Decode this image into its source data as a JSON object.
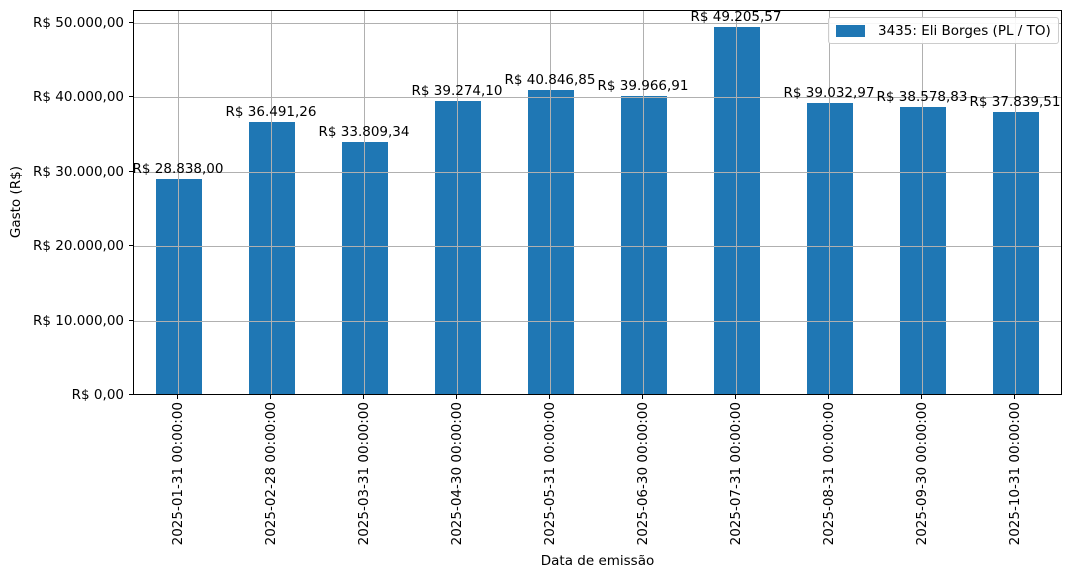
{
  "chart_data": {
    "type": "bar",
    "title": "",
    "xlabel": "Data de emissão",
    "ylabel": "Gasto (R$)",
    "categories": [
      "2025-01-31 00:00:00",
      "2025-02-28 00:00:00",
      "2025-03-31 00:00:00",
      "2025-04-30 00:00:00",
      "2025-05-31 00:00:00",
      "2025-06-30 00:00:00",
      "2025-07-31 00:00:00",
      "2025-08-31 00:00:00",
      "2025-09-30 00:00:00",
      "2025-10-31 00:00:00"
    ],
    "series": [
      {
        "name": "3435: Eli Borges (PL / TO)",
        "values": [
          28838.0,
          36491.26,
          33809.34,
          39274.1,
          40846.85,
          39966.91,
          49205.57,
          39032.97,
          38578.83,
          37839.51
        ]
      }
    ],
    "value_labels": [
      "R$ 28.838,00",
      "R$ 36.491,26",
      "R$ 33.809,34",
      "R$ 39.274,10",
      "R$ 40.846,85",
      "R$ 39.966,91",
      "R$ 49.205,57",
      "R$ 39.032,97",
      "R$ 38.578,83",
      "R$ 37.839,51"
    ],
    "yticks": [
      {
        "value": 0,
        "label": "R$ 0,00"
      },
      {
        "value": 10000,
        "label": "R$ 10.000,00"
      },
      {
        "value": 20000,
        "label": "R$ 20.000,00"
      },
      {
        "value": 30000,
        "label": "R$ 30.000,00"
      },
      {
        "value": 40000,
        "label": "R$ 40.000,00"
      },
      {
        "value": 50000,
        "label": "R$ 50.000,00"
      }
    ],
    "ylim": [
      0,
      51678
    ],
    "grid": true,
    "grid_on_top": true,
    "bar_color": "#1f77b4",
    "grid_color": "#b0b0b0",
    "legend": {
      "label": "3435: Eli Borges (PL / TO)",
      "position": "upper right",
      "swatch_color": "#1f77b4"
    }
  }
}
